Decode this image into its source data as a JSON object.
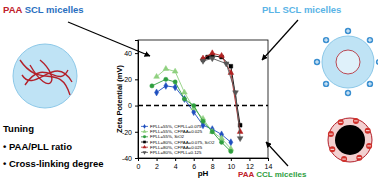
{
  "chart_data": {
    "type": "line",
    "x_label": "pH",
    "y_label": "Zeta Potential (mV)",
    "xlim": [
      0,
      14
    ],
    "xticks": [
      0,
      2,
      4,
      6,
      8,
      10,
      12,
      14
    ],
    "ylim": [
      -40,
      50
    ],
    "yticks": [
      -40,
      -20,
      0,
      20,
      40
    ],
    "grid": false,
    "legend": "lower-left",
    "annotations": [
      "PAA",
      "SCL micelles",
      "PLL",
      "SCL micelles",
      "PAA",
      "CCL micelles",
      "Tuning",
      "• PAA/PLL ratio",
      "• Cross-linking degree"
    ],
    "series": [
      {
        "name": "FPLL=55%, CFPLL=0.075",
        "color": "#1f4fbf",
        "marker": "diamond",
        "x": [
          2,
          3,
          4,
          5,
          6,
          7,
          8,
          9,
          10
        ],
        "values": [
          10,
          15,
          14,
          5,
          -5,
          -15,
          -18,
          -22,
          -28
        ]
      },
      {
        "name": "FPLL=55%, CFPAA=0.025",
        "color": "#8fd07f",
        "marker": "triangle",
        "x": [
          2,
          3,
          4,
          5,
          6,
          7,
          8,
          9,
          10
        ],
        "values": [
          22,
          28,
          26,
          10,
          -2,
          -10,
          -20,
          -25,
          -33
        ]
      },
      {
        "name": "FPLL=55%, SiO2",
        "color": "#2e9e3e",
        "marker": "circle",
        "x": [
          1.5,
          3,
          4,
          5,
          6,
          7,
          8,
          9,
          10
        ],
        "values": [
          15,
          20,
          18,
          5,
          0,
          -12,
          -20,
          -28,
          -35
        ]
      },
      {
        "name": "FPLL=80%, CFPAA=0.075, SiO2",
        "color": "#000000",
        "marker": "square",
        "x": [
          7,
          7.5,
          8,
          9,
          10,
          11
        ],
        "values": [
          35,
          37,
          38,
          37,
          30,
          -15
        ]
      },
      {
        "name": "FPLL=80%, CFPAA=0.025",
        "color": "#b22222",
        "marker": "triangle",
        "x": [
          7,
          8,
          9,
          10,
          11
        ],
        "values": [
          36,
          40,
          38,
          25,
          -20
        ]
      },
      {
        "name": "FPLL=80%, CFPLL=0.125",
        "color": "#555555",
        "marker": "triangle-down",
        "x": [
          7,
          8,
          9.5,
          10.5,
          11
        ],
        "values": [
          34,
          36,
          32,
          10,
          -25
        ]
      }
    ]
  }
}
